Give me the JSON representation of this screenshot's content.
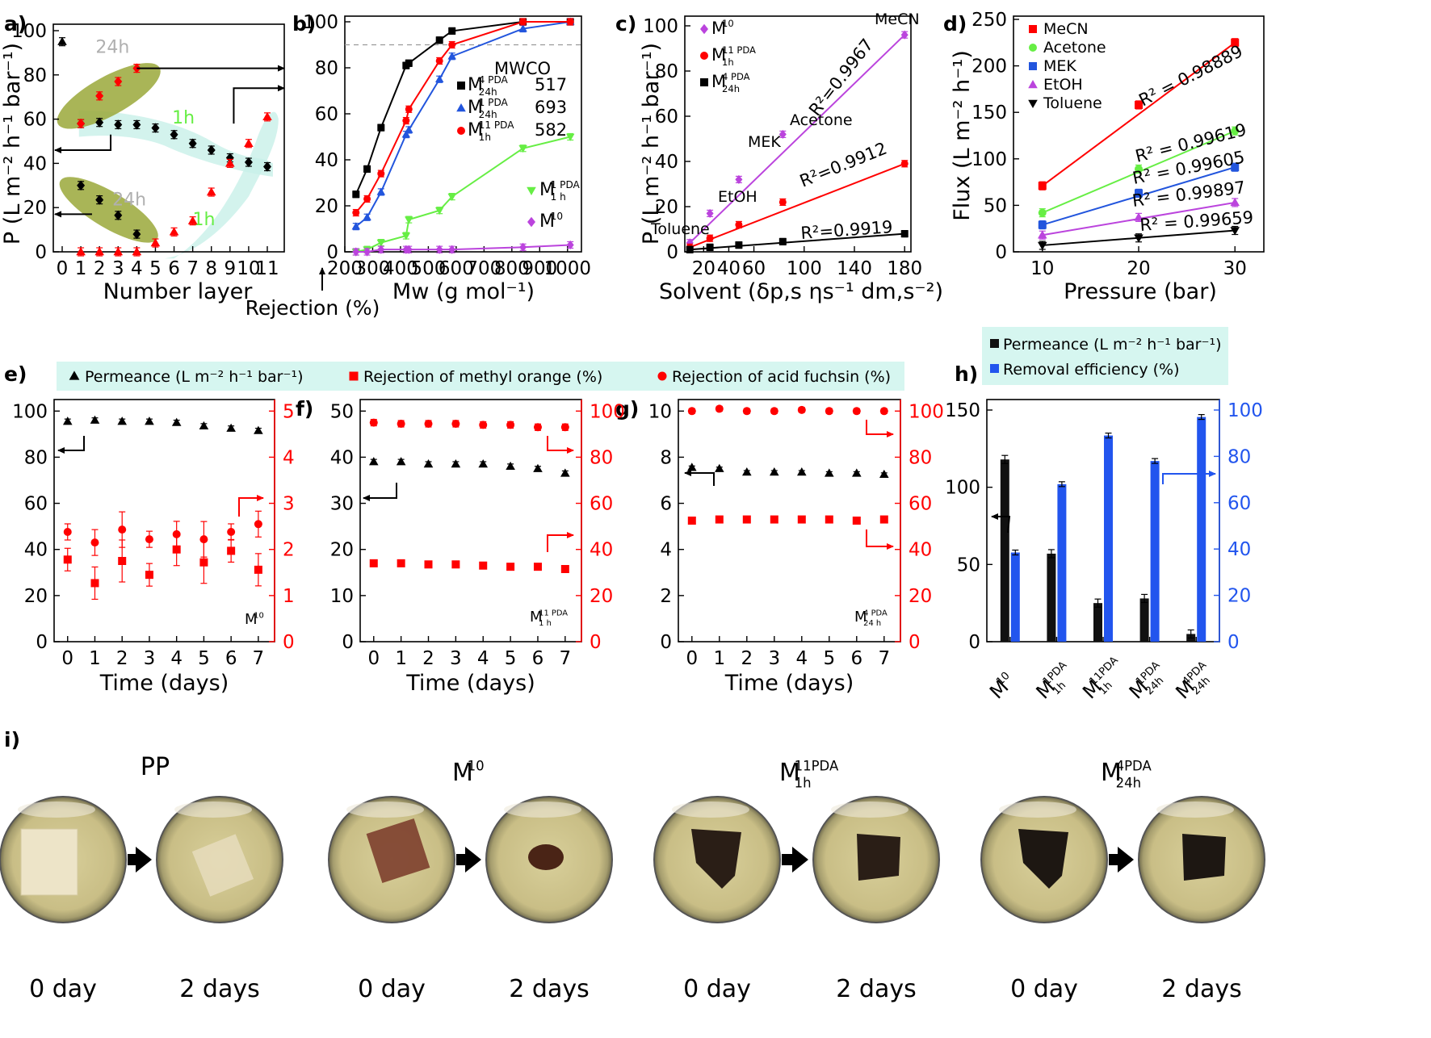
{
  "figure": {
    "panel_labels": [
      "a)",
      "b)",
      "c)",
      "d)",
      "e)",
      "f)",
      "g)",
      "h)",
      "i)"
    ],
    "rejection_axis_label": "Rejection (%)",
    "legend_efg": [
      "Permeance (L m⁻² h⁻¹ bar⁻¹)",
      "Rejection of methyl orange (%)",
      "Rejection of acid fuchsin (%)"
    ],
    "legend_h": [
      "Permeance (L m⁻² h⁻¹ bar⁻¹)",
      "Removal efficiency (%)"
    ],
    "photos": {
      "titles": [
        "PP",
        "M10",
        "M11PDA1h",
        "M4PDA24h"
      ],
      "captions": [
        "0 day",
        "2 days"
      ]
    }
  },
  "chart_data": [
    {
      "panel": "a",
      "type": "scatter",
      "xlabel": "Number layer",
      "ylabel": "P (L m⁻² h⁻¹ bar⁻¹)",
      "xlim": [
        0,
        11
      ],
      "ylim": [
        0,
        100
      ],
      "xticks": [
        0,
        1,
        2,
        3,
        4,
        5,
        6,
        7,
        8,
        9,
        10,
        11
      ],
      "yticks": [
        0,
        20,
        40,
        60,
        80,
        100
      ],
      "annotations": [
        "24h",
        "1h",
        "24h",
        "1h"
      ],
      "series": [
        {
          "marker": "triangle",
          "color": "#000000",
          "x": [
            0
          ],
          "y": [
            95
          ]
        },
        {
          "marker": "diamond",
          "color": "#000000",
          "x": [
            1,
            2,
            3,
            4,
            5,
            6,
            7,
            8,
            9,
            10,
            11
          ],
          "y": [
            58,
            58.5,
            57.5,
            57.5,
            56,
            53,
            49,
            46,
            42.5,
            40.5,
            38.5
          ]
        },
        {
          "marker": "triangle",
          "color": "#ff0000",
          "x": [
            1,
            2,
            3,
            4,
            5,
            6,
            7,
            8,
            9,
            10,
            11
          ],
          "y": [
            0,
            0,
            0,
            0,
            4,
            9,
            14,
            27,
            40,
            49,
            61
          ]
        },
        {
          "marker": "diamond",
          "color": "#ff0000",
          "x": [
            1,
            2,
            3,
            4
          ],
          "y": [
            58,
            70.5,
            77,
            83
          ]
        },
        {
          "marker": "diamond",
          "color": "#000000",
          "x": [
            1,
            2,
            3,
            4
          ],
          "y": [
            30,
            23.5,
            16.5,
            8
          ]
        }
      ]
    },
    {
      "panel": "b",
      "type": "line",
      "xlabel": "Mw (g mol⁻¹)",
      "xlim": [
        200,
        1050
      ],
      "ylim": [
        0,
        100
      ],
      "xticks": [
        200,
        300,
        400,
        500,
        600,
        700,
        800,
        900,
        1000
      ],
      "yticks": [
        0,
        20,
        40,
        60,
        80,
        100
      ],
      "mwco_title": "MWCO",
      "series": [
        {
          "name": "M4PDA24h",
          "mwco": "517",
          "color": "#000000",
          "marker": "square",
          "x": [
            240,
            280,
            330,
            420,
            430,
            540,
            585,
            840,
            1010
          ],
          "y": [
            25,
            36,
            54,
            81,
            82,
            92,
            96,
            100,
            100
          ]
        },
        {
          "name": "M1PDA24h",
          "mwco": "693",
          "color": "#2255dd",
          "marker": "triangle",
          "x": [
            240,
            280,
            330,
            420,
            430,
            540,
            585,
            840,
            1010
          ],
          "y": [
            11,
            15,
            26,
            51,
            53,
            75,
            85,
            97,
            100
          ]
        },
        {
          "name": "M11PDA1h",
          "mwco": "582",
          "color": "#ff0000",
          "marker": "circle",
          "x": [
            240,
            280,
            330,
            420,
            430,
            540,
            585,
            840,
            1010
          ],
          "y": [
            17,
            23,
            34,
            57,
            62,
            83,
            90,
            100,
            100
          ]
        },
        {
          "name": "M1PDA1h",
          "color": "#66ee44",
          "marker": "triangle-down",
          "x": [
            240,
            280,
            330,
            420,
            430,
            540,
            585,
            840,
            1010
          ],
          "y": [
            0,
            1,
            4,
            7,
            14,
            18,
            24,
            45,
            50
          ]
        },
        {
          "name": "M10",
          "color": "#bb44dd",
          "marker": "diamond",
          "x": [
            240,
            280,
            330,
            420,
            430,
            540,
            585,
            840,
            1010
          ],
          "y": [
            0,
            0,
            1,
            1,
            1,
            1,
            1,
            2,
            3
          ]
        }
      ]
    },
    {
      "panel": "c",
      "type": "scatter",
      "xlabel": "Solvent (δp,s ηs⁻¹ dm,s⁻²)",
      "ylabel": "P (L m⁻² h⁻¹ bar⁻¹)",
      "xlim": [
        5,
        185
      ],
      "ylim": [
        0,
        100
      ],
      "xticks": [
        20,
        40,
        60,
        100,
        140,
        180
      ],
      "yticks": [
        0,
        20,
        40,
        60,
        80,
        100
      ],
      "solvent_labels": [
        "Toluene",
        "EtOH",
        "MEK",
        "Acetone",
        "MeCN"
      ],
      "series": [
        {
          "name": "M10",
          "r2": "R²=0.9967",
          "color": "#bb44dd",
          "marker": "diamond",
          "x": [
            9,
            25,
            48,
            83,
            180
          ],
          "y": [
            4,
            17,
            32,
            52,
            96
          ]
        },
        {
          "name": "M11PDA1h",
          "r2": "R²=0.9912",
          "color": "#ff0000",
          "marker": "circle",
          "x": [
            9,
            25,
            48,
            83,
            180
          ],
          "y": [
            2,
            6,
            12,
            22,
            39
          ]
        },
        {
          "name": "M4PDA24h",
          "r2": "R²=0.9919",
          "color": "#000000",
          "marker": "square",
          "x": [
            9,
            25,
            48,
            83,
            180
          ],
          "y": [
            1,
            2,
            3,
            4.5,
            8
          ]
        }
      ]
    },
    {
      "panel": "d",
      "type": "line",
      "xlabel": "Pressure (bar)",
      "ylabel": "Flux (L m⁻² h⁻¹)",
      "xlim": [
        7,
        33
      ],
      "ylim": [
        0,
        250
      ],
      "xticks": [
        10,
        20,
        30
      ],
      "yticks": [
        0,
        50,
        100,
        150,
        200,
        250
      ],
      "series": [
        {
          "name": "MeCN",
          "r2": "R² = 0.98889",
          "color": "#ff0000",
          "marker": "square",
          "x": [
            10,
            20,
            30
          ],
          "y": [
            71,
            158,
            225
          ]
        },
        {
          "name": "Acetone",
          "r2": "R² = 0.99619",
          "color": "#66ee44",
          "marker": "circle",
          "x": [
            10,
            20,
            30
          ],
          "y": [
            42,
            89,
            130
          ]
        },
        {
          "name": "MEK",
          "r2": "R² = 0.99605",
          "color": "#2255dd",
          "marker": "square",
          "x": [
            10,
            20,
            30
          ],
          "y": [
            29,
            63,
            91
          ]
        },
        {
          "name": "EtOH",
          "r2": "R² = 0.99897",
          "color": "#bb44dd",
          "marker": "triangle",
          "x": [
            10,
            20,
            30
          ],
          "y": [
            18,
            37,
            53
          ]
        },
        {
          "name": "Toluene",
          "r2": "R² = 0.99659",
          "color": "#000000",
          "marker": "triangle-down",
          "x": [
            10,
            20,
            30
          ],
          "y": [
            7,
            15,
            23
          ]
        }
      ]
    },
    {
      "panel": "e",
      "type": "scatter",
      "xlabel": "Time (days)",
      "label": "M10",
      "xlim": [
        -0.2,
        7.3
      ],
      "ylim_left": [
        0,
        105
      ],
      "ylim_right": [
        0,
        5.25
      ],
      "xticks": [
        0,
        1,
        2,
        3,
        4,
        5,
        6,
        7
      ],
      "yticks_left": [
        0,
        20,
        40,
        60,
        80,
        100
      ],
      "yticks_right": [
        0,
        1,
        2,
        3,
        4,
        5
      ],
      "series": [
        {
          "name": "Permeance",
          "axis": "left",
          "marker": "triangle",
          "color": "#000000",
          "x": [
            0,
            1,
            2,
            3,
            4,
            5,
            6,
            7
          ],
          "y": [
            95.5,
            96,
            95.5,
            95.5,
            95,
            93.5,
            92.5,
            91.5
          ]
        },
        {
          "name": "Rejection of methyl orange",
          "axis": "right",
          "marker": "square",
          "color": "#ff0000",
          "x": [
            0,
            1,
            2,
            3,
            4,
            5,
            6,
            7
          ],
          "y": [
            1.78,
            1.27,
            1.75,
            1.45,
            2.0,
            1.72,
            1.97,
            1.56
          ]
        },
        {
          "name": "Rejection of acid fuchsin",
          "axis": "right",
          "marker": "circle",
          "color": "#ff0000",
          "x": [
            0,
            1,
            2,
            3,
            4,
            5,
            6,
            7
          ],
          "y": [
            2.38,
            2.15,
            2.43,
            2.22,
            2.33,
            2.22,
            2.38,
            2.55
          ]
        }
      ]
    },
    {
      "panel": "f",
      "type": "scatter",
      "xlabel": "Time (days)",
      "label": "M11PDA1h",
      "xlim": [
        -0.2,
        7.3
      ],
      "ylim_left": [
        0,
        52.5
      ],
      "ylim_right": [
        0,
        105
      ],
      "xticks": [
        0,
        1,
        2,
        3,
        4,
        5,
        6,
        7
      ],
      "yticks_left": [
        0,
        10,
        20,
        30,
        40,
        50
      ],
      "yticks_right": [
        0,
        20,
        40,
        60,
        80,
        100
      ],
      "series": [
        {
          "name": "Permeance",
          "axis": "left",
          "marker": "triangle",
          "color": "#000000",
          "x": [
            0,
            1,
            2,
            3,
            4,
            5,
            6,
            7
          ],
          "y": [
            39,
            39,
            38.5,
            38.5,
            38.5,
            38,
            37.5,
            36.5
          ]
        },
        {
          "name": "Rejection of methyl orange",
          "axis": "right",
          "marker": "square",
          "color": "#ff0000",
          "x": [
            0,
            1,
            2,
            3,
            4,
            5,
            6,
            7
          ],
          "y": [
            34,
            34,
            33.5,
            33.5,
            33,
            32.5,
            32.5,
            31.5
          ]
        },
        {
          "name": "Rejection of acid fuchsin",
          "axis": "right",
          "marker": "circle",
          "color": "#ff0000",
          "x": [
            0,
            1,
            2,
            3,
            4,
            5,
            6,
            7
          ],
          "y": [
            95,
            94.5,
            94.5,
            94.5,
            94,
            94,
            93,
            93
          ]
        }
      ]
    },
    {
      "panel": "g",
      "type": "scatter",
      "xlabel": "Time (days)",
      "label": "M4PDA24h",
      "xlim": [
        -0.2,
        7.3
      ],
      "ylim_left": [
        0,
        10.5
      ],
      "ylim_right": [
        0,
        105
      ],
      "xticks": [
        0,
        1,
        2,
        3,
        4,
        5,
        6,
        7
      ],
      "yticks_left": [
        0,
        2,
        4,
        6,
        8,
        10
      ],
      "yticks_right": [
        0,
        20,
        40,
        60,
        80,
        100
      ],
      "series": [
        {
          "name": "Permeance",
          "axis": "left",
          "marker": "triangle",
          "color": "#000000",
          "x": [
            0,
            1,
            2,
            3,
            4,
            5,
            6,
            7
          ],
          "y": [
            7.55,
            7.5,
            7.35,
            7.35,
            7.35,
            7.3,
            7.3,
            7.25
          ]
        },
        {
          "name": "Rejection of methyl orange",
          "axis": "right",
          "marker": "square",
          "color": "#ff0000",
          "x": [
            0,
            1,
            2,
            3,
            4,
            5,
            6,
            7
          ],
          "y": [
            52.5,
            53,
            53,
            53,
            53,
            53,
            52.5,
            53
          ]
        },
        {
          "name": "Rejection of acid fuchsin",
          "axis": "right",
          "marker": "circle",
          "color": "#ff0000",
          "x": [
            0,
            1,
            2,
            3,
            4,
            5,
            6,
            7
          ],
          "y": [
            100,
            101,
            100,
            100,
            100.5,
            100,
            100,
            100
          ]
        }
      ]
    },
    {
      "panel": "h",
      "type": "bar",
      "categories": [
        "M10",
        "M1PDA1h",
        "M11PDA1h",
        "M1PDA24h",
        "M4PDA24h"
      ],
      "ylim_left": [
        0,
        150
      ],
      "ylim_right": [
        0,
        100
      ],
      "yticks_left": [
        0,
        50,
        100,
        150
      ],
      "yticks_right": [
        0,
        20,
        40,
        60,
        80,
        100
      ],
      "series": [
        {
          "name": "Permeance (L m⁻² h⁻¹ bar⁻¹)",
          "axis": "left",
          "color": "#111111",
          "values": [
            118,
            57,
            25,
            28,
            5
          ]
        },
        {
          "name": "Removal efficiency (%)",
          "axis": "right",
          "color": "#2255ee",
          "values": [
            38.5,
            68,
            89,
            78,
            97
          ]
        }
      ]
    }
  ]
}
